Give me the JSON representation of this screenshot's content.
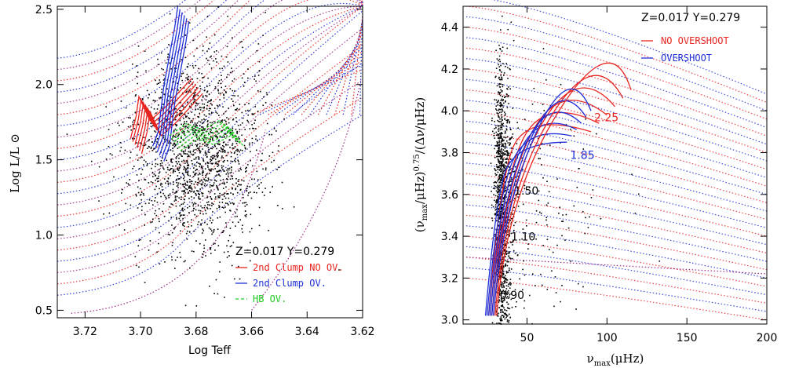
{
  "colors": {
    "no_overshoot": "#e8241f",
    "overshoot": "#1f2fd6",
    "hb": "#22cc22",
    "stars": "#000000",
    "dotted_purple": "#a02a8a"
  },
  "chart_data": [
    {
      "type": "scatter",
      "xlabel": "Log Teff",
      "ylabel": "Log L/L ⊙",
      "xlim": [
        3.73,
        3.62
      ],
      "ylim": [
        0.45,
        2.52
      ],
      "xticks": [
        "3.72",
        "3.70",
        "3.68",
        "3.66",
        "3.64",
        "3.62"
      ],
      "xtick_values": [
        3.72,
        3.7,
        3.68,
        3.66,
        3.64,
        3.62
      ],
      "yticks": [
        "0.5",
        "1.0",
        "1.5",
        "2.0",
        "2.5"
      ],
      "ytick_values": [
        0.5,
        1.0,
        1.5,
        2.0,
        2.5
      ],
      "annotation": "Z=0.017 Y=0.279",
      "legend": [
        {
          "label": "2nd Clump NO OV.",
          "color": "#e8241f",
          "style": "solid"
        },
        {
          "label": "2nd Clump OV.",
          "color": "#1f2fd6",
          "style": "solid"
        },
        {
          "label": "HB OV.",
          "color": "#22cc22",
          "style": "dashed"
        }
      ],
      "star_cloud": {
        "center_x": 3.68,
        "center_y": 1.55,
        "spread_x": 0.012,
        "spread_y": 0.32
      },
      "series": [
        {
          "name": "2nd Clump NO OV.",
          "x": [
            3.702,
            3.7,
            3.699,
            3.695,
            3.69,
            3.685,
            3.68
          ],
          "y": [
            1.6,
            1.75,
            1.88,
            1.72,
            1.8,
            1.9,
            2.0
          ]
        },
        {
          "name": "2nd Clump OV.",
          "x": [
            3.694,
            3.692,
            3.69,
            3.688,
            3.686,
            3.685
          ],
          "y": [
            1.55,
            1.65,
            1.95,
            2.15,
            2.35,
            2.48
          ]
        },
        {
          "name": "HB OV.",
          "x": [
            3.688,
            3.682,
            3.676,
            3.67,
            3.665
          ],
          "y": [
            1.62,
            1.7,
            1.66,
            1.72,
            1.65
          ]
        }
      ],
      "grid": false
    },
    {
      "type": "scatter",
      "xlabel": "ν_max(μHz)",
      "ylabel": "(ν_max/μHz)^0.75/(Δν/μHz)",
      "xlim": [
        10,
        200
      ],
      "ylim": [
        2.98,
        4.5
      ],
      "xticks": [
        "50",
        "100",
        "150",
        "200"
      ],
      "xtick_values": [
        50,
        100,
        150,
        200
      ],
      "yticks": [
        "3.0",
        "3.2",
        "3.4",
        "3.6",
        "3.8",
        "4.0",
        "4.2",
        "4.4"
      ],
      "ytick_values": [
        3.0,
        3.2,
        3.4,
        3.6,
        3.8,
        4.0,
        4.2,
        4.4
      ],
      "annotation": "Z=0.017 Y=0.279",
      "legend": [
        {
          "label": "NO OVERSHOOT",
          "color": "#e8241f",
          "style": "solid"
        },
        {
          "label": "OVERSHOOT",
          "color": "#1f2fd6",
          "style": "solid"
        }
      ],
      "mass_labels": [
        {
          "text": "2.25",
          "x": 92,
          "y": 3.95,
          "color": "#e8241f"
        },
        {
          "text": "1.85",
          "x": 77,
          "y": 3.77,
          "color": "#1f2fd6"
        },
        {
          "text": "1.50",
          "x": 42,
          "y": 3.6,
          "color": "#000000"
        },
        {
          "text": "1.10",
          "x": 40,
          "y": 3.38,
          "color": "#000000"
        },
        {
          "text": "0.90",
          "x": 33,
          "y": 3.1,
          "color": "#000000"
        }
      ],
      "star_cloud": {
        "center_x": 31,
        "center_y": 3.5,
        "spread_x": 4,
        "spread_y": 0.35
      },
      "grid": false
    }
  ]
}
